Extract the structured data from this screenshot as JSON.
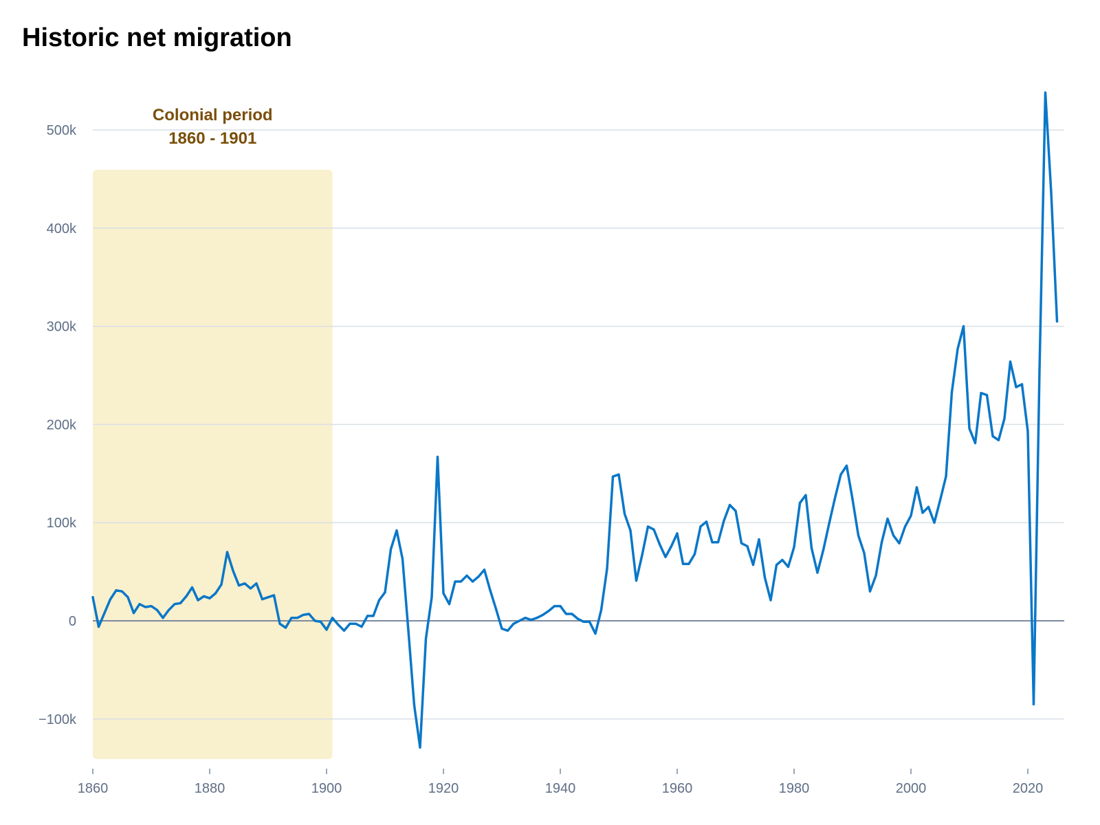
{
  "chart_data": {
    "type": "line",
    "title": "Historic net migration",
    "xlabel": "",
    "ylabel": "",
    "xlim": [
      1860,
      2025
    ],
    "ylim": [
      -140000,
      560000
    ],
    "grid": true,
    "x_ticks": [
      1860,
      1880,
      1900,
      1920,
      1940,
      1960,
      1980,
      2000,
      2020
    ],
    "y_ticks": [
      {
        "value": 500000,
        "label": "500k"
      },
      {
        "value": 400000,
        "label": "400k"
      },
      {
        "value": 300000,
        "label": "300k"
      },
      {
        "value": 200000,
        "label": "200k"
      },
      {
        "value": 100000,
        "label": "100k"
      },
      {
        "value": 0,
        "label": "0"
      },
      {
        "value": -100000,
        "label": "−100k"
      }
    ],
    "annotation": {
      "lines": [
        "Colonial period",
        "1860 - 1901"
      ],
      "x_start": 1860,
      "x_end": 1901,
      "fill_color": "#f9f0cd",
      "text_color": "#7a4f0a"
    },
    "colors": {
      "line": "#0a77c8",
      "grid": "#d9dfe6",
      "zero_line": "#7c8a9f",
      "tick_text": "#5f6f86"
    },
    "series": [
      {
        "x": [
          1860,
          1861,
          1862,
          1863,
          1864,
          1865,
          1866,
          1867,
          1868,
          1869,
          1870,
          1871,
          1872,
          1873,
          1874,
          1875,
          1876,
          1877,
          1878,
          1879,
          1880,
          1881,
          1882,
          1883,
          1884,
          1885,
          1886,
          1887,
          1888,
          1889,
          1890,
          1891,
          1892,
          1893,
          1894,
          1895,
          1896,
          1897,
          1898,
          1899,
          1900,
          1901,
          1902,
          1903,
          1904,
          1905,
          1906,
          1907,
          1908,
          1909,
          1910,
          1911,
          1912,
          1913,
          1914,
          1915,
          1916,
          1917,
          1918,
          1919,
          1920,
          1921,
          1922,
          1923,
          1924,
          1925,
          1926,
          1927,
          1928,
          1929,
          1930,
          1931,
          1932,
          1933,
          1934,
          1935,
          1936,
          1937,
          1938,
          1939,
          1940,
          1941,
          1942,
          1943,
          1944,
          1945,
          1946,
          1947,
          1948,
          1949,
          1950,
          1951,
          1952,
          1953,
          1954,
          1955,
          1956,
          1957,
          1958,
          1959,
          1960,
          1961,
          1962,
          1963,
          1964,
          1965,
          1966,
          1967,
          1968,
          1969,
          1970,
          1971,
          1972,
          1973,
          1974,
          1975,
          1976,
          1977,
          1978,
          1979,
          1980,
          1981,
          1982,
          1983,
          1984,
          1985,
          1986,
          1987,
          1988,
          1989,
          1990,
          1991,
          1992,
          1993,
          1994,
          1995,
          1996,
          1997,
          1998,
          1999,
          2000,
          2001,
          2002,
          2003,
          2004,
          2005,
          2006,
          2007,
          2008,
          2009,
          2010,
          2011,
          2012,
          2013,
          2014,
          2015,
          2016,
          2017,
          2018,
          2019,
          2020,
          2021,
          2022,
          2023,
          2024,
          2025
        ],
        "y": [
          24000,
          -6000,
          8000,
          22000,
          31000,
          30000,
          24000,
          8000,
          17000,
          14000,
          15000,
          11000,
          3000,
          11000,
          17000,
          18000,
          25000,
          34000,
          21000,
          25000,
          23000,
          28000,
          37000,
          70000,
          51000,
          36000,
          38000,
          33000,
          38000,
          22000,
          24000,
          26000,
          -3000,
          -7000,
          3000,
          3000,
          6000,
          7000,
          0,
          -1000,
          -9000,
          3000,
          -4000,
          -10000,
          -3000,
          -3000,
          -6000,
          5000,
          5000,
          21000,
          29000,
          73000,
          92000,
          63000,
          -10000,
          -86000,
          -129000,
          -18000,
          24000,
          167000,
          28000,
          17000,
          40000,
          40000,
          46000,
          40000,
          45000,
          52000,
          31000,
          12000,
          -8000,
          -10000,
          -3000,
          0,
          3000,
          1000,
          3000,
          6000,
          10000,
          15000,
          15000,
          7000,
          7000,
          2000,
          -1000,
          -1000,
          -13000,
          11000,
          53000,
          147000,
          149000,
          109000,
          92000,
          41000,
          67000,
          96000,
          93000,
          78000,
          65000,
          76000,
          89000,
          58000,
          58000,
          68000,
          96000,
          101000,
          80000,
          80000,
          102000,
          118000,
          112000,
          79000,
          76000,
          57000,
          83000,
          44000,
          21000,
          57000,
          62000,
          55000,
          75000,
          120000,
          128000,
          74000,
          49000,
          72000,
          99000,
          125000,
          149000,
          158000,
          124000,
          87000,
          69000,
          30000,
          46000,
          80000,
          104000,
          87000,
          79000,
          96000,
          107000,
          136000,
          110000,
          116000,
          100000,
          123000,
          147000,
          233000,
          277000,
          300000,
          196000,
          181000,
          232000,
          230000,
          188000,
          184000,
          206000,
          264000,
          238000,
          241000,
          193000,
          -85000,
          255000,
          538000,
          436000,
          305000
        ]
      }
    ]
  }
}
